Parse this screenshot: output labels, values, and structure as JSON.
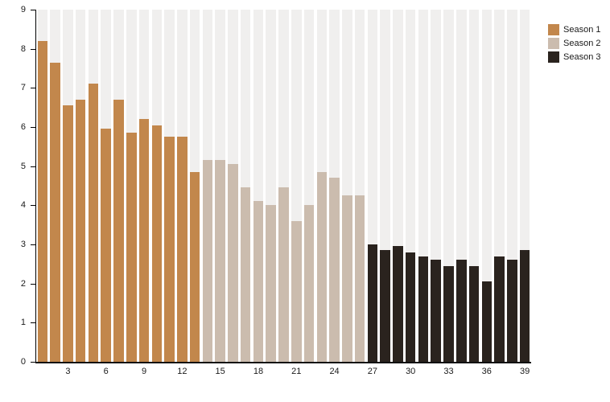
{
  "chart_data": {
    "type": "bar",
    "title": "",
    "xlabel": "",
    "ylabel": "",
    "ylim": [
      0,
      9
    ],
    "yticks": [
      0,
      1,
      2,
      3,
      4,
      5,
      6,
      7,
      8,
      9
    ],
    "xticks": [
      3,
      6,
      9,
      12,
      15,
      18,
      21,
      24,
      27,
      30,
      33,
      36,
      39
    ],
    "total_episodes": 39,
    "legend_position": "top-right",
    "grid": false,
    "background_stripes": true,
    "series": [
      {
        "name": "Season 1",
        "color": "#c2874c",
        "start_episode": 1,
        "values": [
          8.2,
          7.65,
          6.55,
          6.7,
          7.1,
          5.95,
          6.7,
          5.85,
          6.2,
          6.05,
          5.75,
          5.75,
          4.85
        ]
      },
      {
        "name": "Season 2",
        "color": "#cbbcae",
        "start_episode": 14,
        "values": [
          5.15,
          5.15,
          5.05,
          4.45,
          4.1,
          4.0,
          4.45,
          3.6,
          4.0,
          4.85,
          4.7,
          4.25,
          4.25
        ]
      },
      {
        "name": "Season 3",
        "color": "#2a231e",
        "start_episode": 27,
        "values": [
          3.0,
          2.85,
          2.95,
          2.8,
          2.7,
          2.6,
          2.45,
          2.6,
          2.45,
          2.05,
          2.7,
          2.6,
          2.85
        ]
      }
    ],
    "colors": {
      "stripe": "#f0efee",
      "axis": "#000000",
      "label": "#1a1a1a",
      "background": "#ffffff"
    }
  }
}
